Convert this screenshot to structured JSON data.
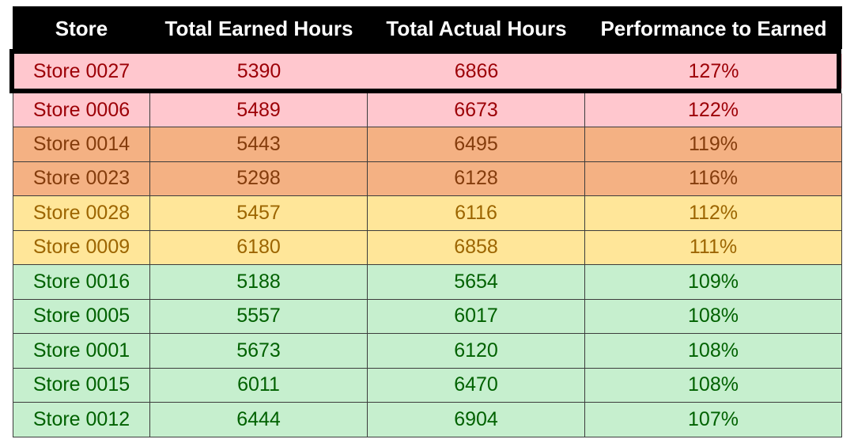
{
  "chart_data": {
    "type": "table",
    "columns": [
      "Store",
      "Total Earned Hours",
      "Total Actual Hours",
      "Performance to Earned"
    ],
    "rows": [
      {
        "store": "Store 0027",
        "earned": "5390",
        "actual": "6866",
        "performance": "127%",
        "tier": "red"
      },
      {
        "store": "Store 0006",
        "earned": "5489",
        "actual": "6673",
        "performance": "122%",
        "tier": "red"
      },
      {
        "store": "Store 0014",
        "earned": "5443",
        "actual": "6495",
        "performance": "119%",
        "tier": "orange"
      },
      {
        "store": "Store 0023",
        "earned": "5298",
        "actual": "6128",
        "performance": "116%",
        "tier": "orange"
      },
      {
        "store": "Store 0028",
        "earned": "5457",
        "actual": "6116",
        "performance": "112%",
        "tier": "yellow"
      },
      {
        "store": "Store 0009",
        "earned": "6180",
        "actual": "6858",
        "performance": "111%",
        "tier": "yellow"
      },
      {
        "store": "Store 0016",
        "earned": "5188",
        "actual": "5654",
        "performance": "109%",
        "tier": "green"
      },
      {
        "store": "Store 0005",
        "earned": "5557",
        "actual": "6017",
        "performance": "108%",
        "tier": "green"
      },
      {
        "store": "Store 0001",
        "earned": "5673",
        "actual": "6120",
        "performance": "108%",
        "tier": "green"
      },
      {
        "store": "Store 0015",
        "earned": "6011",
        "actual": "6470",
        "performance": "108%",
        "tier": "green"
      },
      {
        "store": "Store 0012",
        "earned": "6444",
        "actual": "6904",
        "performance": "107%",
        "tier": "green"
      }
    ],
    "highlighted_row": 0,
    "tier_colors": {
      "red": {
        "background": "#ffc7ce",
        "text": "#9c0006"
      },
      "orange": {
        "background": "#f4b183",
        "text": "#843c0c"
      },
      "yellow": {
        "background": "#ffe699",
        "text": "#9c6500"
      },
      "green": {
        "background": "#c6efce",
        "text": "#006100"
      }
    },
    "header_colors": {
      "background": "#000000",
      "text": "#ffffff"
    }
  }
}
